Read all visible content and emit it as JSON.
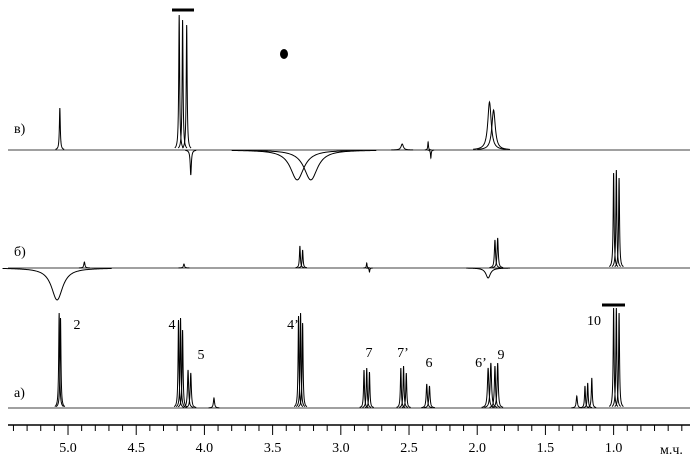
{
  "chart_data": {
    "type": "nmr",
    "x_unit": "м.ч.",
    "xlim": [
      5.44,
      0.44
    ],
    "xticks": [
      {
        "value": 5,
        "label": "5.0"
      },
      {
        "value": 4.5,
        "label": "4.5"
      },
      {
        "value": 4,
        "label": "4.0"
      },
      {
        "value": 3.5,
        "label": "3.5"
      },
      {
        "value": 3,
        "label": "3.0"
      },
      {
        "value": 2.5,
        "label": "2.5"
      },
      {
        "value": 2,
        "label": "2.0"
      },
      {
        "value": 1.5,
        "label": "1.5"
      },
      {
        "value": 1,
        "label": "1.0"
      }
    ],
    "minor_xticks": [
      5.4,
      5.3,
      5.2,
      5.1,
      4.9,
      4.8,
      4.7,
      4.6,
      4.4,
      4.3,
      4.2,
      4.1,
      3.9,
      3.8,
      3.7,
      3.6,
      3.4,
      3.3,
      3.2,
      3.1,
      2.9,
      2.8,
      2.7,
      2.6,
      2.4,
      2.3,
      2.2,
      2.1,
      1.9,
      1.8,
      1.7,
      1.6,
      1.4,
      1.3,
      1.2,
      1.1,
      0.9,
      0.8,
      0.7,
      0.6,
      0.5
    ],
    "color": "#000000",
    "series": [
      {
        "name": "а)",
        "x": [
          5.065,
          5.055,
          4.19,
          4.175,
          4.16,
          4.12,
          4.1,
          3.93,
          3.31,
          3.295,
          3.28,
          2.83,
          2.81,
          2.79,
          2.56,
          2.54,
          2.52,
          2.37,
          2.35,
          1.92,
          1.9,
          1.87,
          1.85,
          1.27,
          1.21,
          1.19,
          1.16,
          1.0,
          0.98,
          0.96
        ],
        "values": [
          95,
          90,
          88,
          90,
          78,
          38,
          35,
          10,
          92,
          95,
          85,
          38,
          40,
          36,
          40,
          42,
          35,
          24,
          22,
          40,
          45,
          42,
          45,
          12,
          22,
          25,
          30,
          100,
          100,
          95
        ],
        "widths": [
          0.008,
          0.008,
          0.008,
          0.008,
          0.008,
          0.01,
          0.01,
          0.01,
          0.008,
          0.008,
          0.008,
          0.008,
          0.008,
          0.008,
          0.008,
          0.008,
          0.008,
          0.01,
          0.01,
          0.012,
          0.012,
          0.01,
          0.01,
          0.01,
          0.008,
          0.008,
          0.008,
          0.008,
          0.008,
          0.008
        ]
      },
      {
        "name": "б)",
        "x": [
          5.08,
          4.88,
          4.15,
          3.3,
          3.28,
          2.81,
          2.79,
          1.92,
          1.87,
          1.85,
          1.0,
          0.98,
          0.96
        ],
        "values": [
          -32,
          6,
          4,
          22,
          18,
          5,
          -4,
          -10,
          28,
          30,
          95,
          98,
          90
        ],
        "widths": [
          0.1,
          0.01,
          0.01,
          0.008,
          0.008,
          0.006,
          0.006,
          0.04,
          0.01,
          0.01,
          0.008,
          0.008,
          0.008
        ]
      },
      {
        "name": "в)",
        "x": [
          5.06,
          4.185,
          4.16,
          4.13,
          4.1,
          3.32,
          3.22,
          2.55,
          2.36,
          2.34,
          1.91,
          1.88
        ],
        "values": [
          42,
          135,
          130,
          125,
          -25,
          -30,
          -30,
          6,
          8,
          -8,
          48,
          40
        ],
        "widths": [
          0.008,
          0.008,
          0.008,
          0.008,
          0.01,
          0.12,
          0.12,
          0.02,
          0.006,
          0.006,
          0.03,
          0.03
        ]
      }
    ],
    "peak_labels": [
      "2",
      "4",
      "5",
      "4’",
      "7",
      "7’",
      "6",
      "6’",
      "9",
      "10"
    ]
  }
}
